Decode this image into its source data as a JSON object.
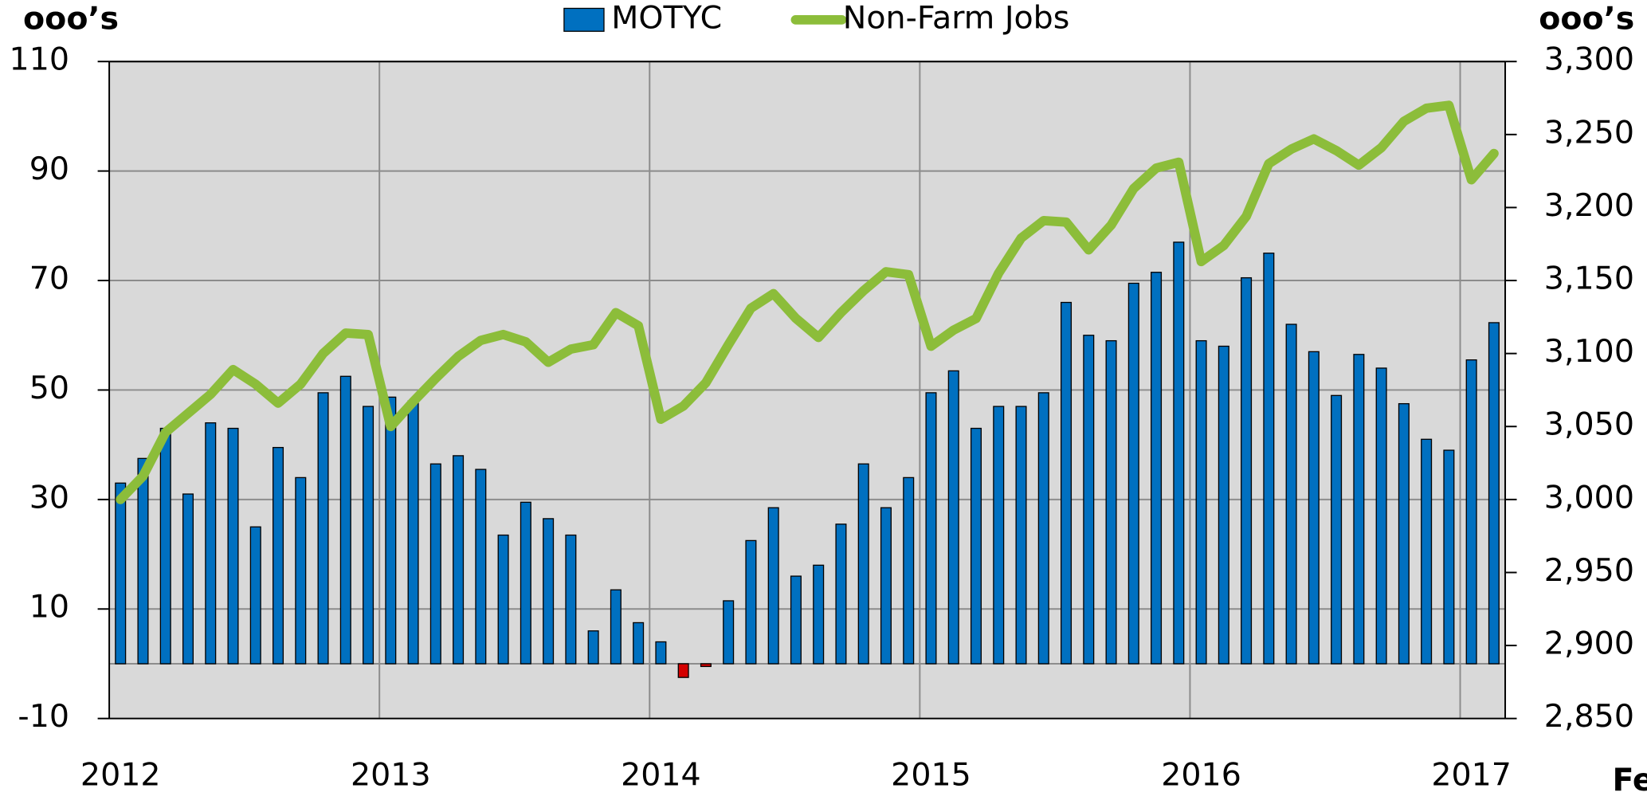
{
  "chart_data": {
    "type": "bar",
    "y_label": "ooo’s",
    "y2_label": "ooo’s",
    "annotation": "Fe",
    "categories": [
      "2012",
      null,
      null,
      null,
      null,
      null,
      null,
      null,
      null,
      null,
      null,
      null,
      "2013",
      null,
      null,
      null,
      null,
      null,
      null,
      null,
      null,
      null,
      null,
      null,
      "2014",
      null,
      null,
      null,
      null,
      null,
      null,
      null,
      null,
      null,
      null,
      null,
      "2015",
      null,
      null,
      null,
      null,
      null,
      null,
      null,
      null,
      null,
      null,
      null,
      "2016",
      null,
      null,
      null,
      null,
      null,
      null,
      null,
      null,
      null,
      null,
      null,
      "2017",
      null
    ],
    "series": [
      {
        "name": "MOTYC",
        "type": "bar",
        "color": "#0070c0",
        "negative_color": "#d40000",
        "values": [
          33,
          37.5,
          43,
          31,
          44,
          43,
          25,
          39.5,
          34,
          49.5,
          52.5,
          47,
          48.7,
          48,
          36.5,
          38,
          35.5,
          23.5,
          29.5,
          26.5,
          23.5,
          6,
          13.5,
          7.5,
          4,
          -2.5,
          -0.5,
          11.5,
          22.5,
          28.5,
          16,
          18,
          25.5,
          36.5,
          28.5,
          34,
          49.5,
          53.5,
          43,
          47,
          47,
          49.5,
          66,
          60,
          59,
          69.5,
          71.5,
          77,
          59,
          58,
          70.5,
          75,
          62,
          57,
          49,
          56.5,
          54,
          47.5,
          41,
          39,
          55.5,
          62.3
        ]
      },
      {
        "name": "Non-Farm Jobs",
        "type": "line",
        "axis": "y2",
        "color": "#8cbd3a",
        "values": [
          3000,
          3016,
          3046,
          3059,
          3072,
          3089,
          3079,
          3066,
          3079,
          3100,
          3114,
          3113,
          3050,
          3067,
          3083,
          3098,
          3109,
          3113,
          3108,
          3094,
          3103,
          3106,
          3128,
          3119,
          3055,
          3064,
          3080,
          3106,
          3131,
          3141,
          3124,
          3111,
          3128,
          3143,
          3156,
          3154,
          3105,
          3116,
          3124,
          3155,
          3179,
          3191,
          3190,
          3171,
          3188,
          3213,
          3227,
          3231,
          3163,
          3174,
          3194,
          3230,
          3240,
          3247,
          3239,
          3229,
          3241,
          3259,
          3268,
          3270,
          3219,
          3237
        ]
      }
    ],
    "ylim": [
      -10,
      110
    ],
    "yticks": [
      110,
      90,
      70,
      50,
      30,
      10,
      -10
    ],
    "y2lim": [
      2850,
      3300
    ],
    "y2ticks": [
      {
        "value": 3300,
        "label": "3,300"
      },
      {
        "value": 3250,
        "label": "3,250"
      },
      {
        "value": 3200,
        "label": "3,200"
      },
      {
        "value": 3150,
        "label": "3,150"
      },
      {
        "value": 3100,
        "label": "3,100"
      },
      {
        "value": 3050,
        "label": "3,050"
      },
      {
        "value": 3000,
        "label": "3,000"
      },
      {
        "value": 2950,
        "label": "2,950"
      },
      {
        "value": 2900,
        "label": "2,900"
      },
      {
        "value": 2850,
        "label": "2,850"
      }
    ],
    "grid": true,
    "plot_background": "#d9d9d9",
    "label_color": "#4a7f2a"
  }
}
